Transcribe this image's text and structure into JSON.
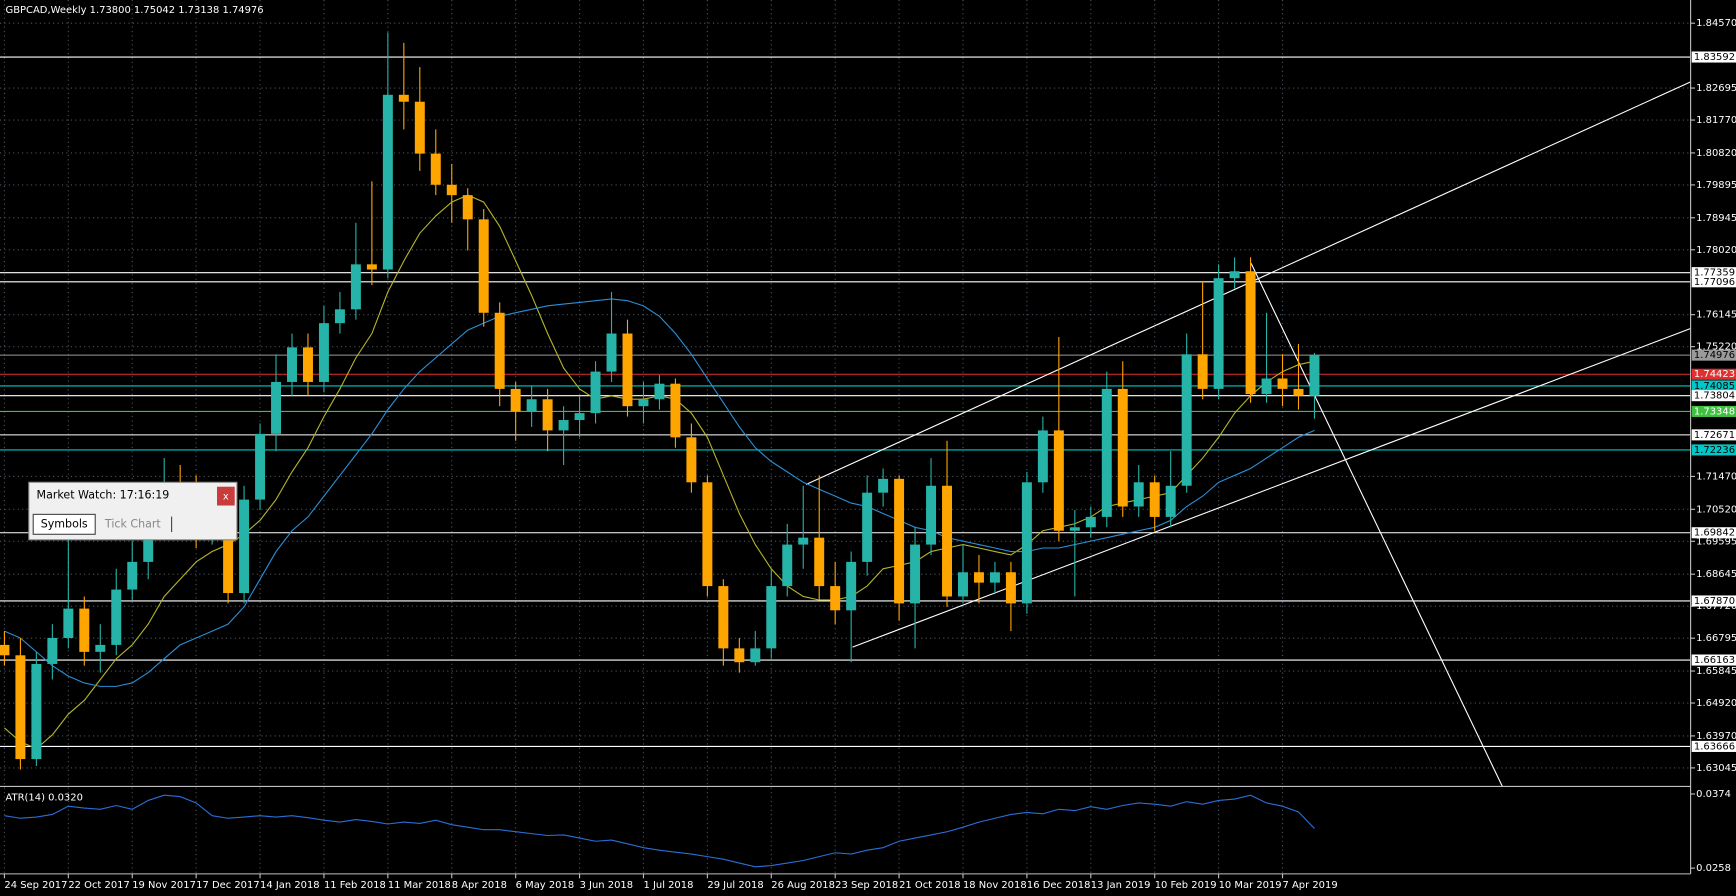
{
  "chart_data": [
    {
      "type": "candlestick",
      "title": "GBPCAD,Weekly  1.73800 1.75042 1.73138 1.74976",
      "categories": [
        "24 Sep 2017",
        null,
        null,
        null,
        "22 Oct 2017",
        null,
        null,
        null,
        "19 Nov 2017",
        null,
        null,
        null,
        "17 Dec 2017",
        null,
        null,
        null,
        "14 Jan 2018",
        null,
        null,
        null,
        "11 Feb 2018",
        null,
        null,
        null,
        "11 Mar 2018",
        null,
        null,
        null,
        "8 Apr 2018",
        null,
        null,
        null,
        "6 May 2018",
        null,
        null,
        null,
        "3 Jun 2018",
        null,
        null,
        null,
        "1 Jul 2018",
        null,
        null,
        null,
        "29 Jul 2018",
        null,
        null,
        null,
        "26 Aug 2018",
        null,
        null,
        null,
        "23 Sep 2018",
        null,
        null,
        null,
        "21 Oct 2018",
        null,
        null,
        null,
        "18 Nov 2018",
        null,
        null,
        null,
        "16 Dec 2018",
        null,
        null,
        null,
        "13 Jan 2019",
        null,
        null,
        null,
        "10 Feb 2019",
        null,
        null,
        null,
        "10 Mar 2019",
        null,
        null,
        null,
        "7 Apr 2019",
        null,
        null
      ],
      "open": [
        1.666,
        1.663,
        1.633,
        1.6605,
        1.668,
        1.6765,
        1.664,
        1.666,
        1.682,
        1.69,
        1.6995,
        1.7125,
        1.711,
        1.698,
        1.699,
        1.681,
        1.708,
        1.727,
        1.742,
        1.752,
        1.742,
        1.759,
        1.763,
        1.776,
        1.7745,
        1.825,
        1.823,
        1.808,
        1.799,
        1.796,
        1.789,
        1.762,
        1.74,
        1.7335,
        1.737,
        1.728,
        1.731,
        1.733,
        1.745,
        1.756,
        1.735,
        1.737,
        1.7415,
        1.726,
        1.713,
        1.683,
        1.665,
        1.661,
        1.665,
        1.683,
        1.695,
        1.697,
        1.683,
        1.676,
        1.69,
        1.71,
        1.714,
        1.678,
        1.695,
        1.712,
        1.68,
        1.687,
        1.684,
        1.687,
        1.678,
        1.713,
        1.728,
        1.699,
        1.7,
        1.703,
        1.74,
        1.706,
        1.713,
        1.703,
        1.712,
        1.75,
        1.74,
        1.772,
        1.774,
        1.7385,
        1.743,
        1.74,
        1.738
      ],
      "high": [
        1.67,
        1.668,
        1.664,
        1.672,
        1.699,
        1.68,
        1.672,
        1.688,
        1.696,
        1.705,
        1.72,
        1.718,
        1.715,
        1.706,
        1.703,
        1.712,
        1.73,
        1.75,
        1.756,
        1.756,
        1.764,
        1.768,
        1.788,
        1.8,
        1.843,
        1.84,
        1.833,
        1.815,
        1.805,
        1.798,
        1.792,
        1.765,
        1.742,
        1.741,
        1.74,
        1.735,
        1.738,
        1.748,
        1.768,
        1.76,
        1.742,
        1.744,
        1.743,
        1.73,
        1.715,
        1.685,
        1.668,
        1.67,
        1.688,
        1.701,
        1.712,
        1.715,
        1.69,
        1.693,
        1.715,
        1.717,
        1.715,
        1.7,
        1.72,
        1.725,
        1.695,
        1.692,
        1.69,
        1.69,
        1.716,
        1.732,
        1.755,
        1.705,
        1.706,
        1.745,
        1.748,
        1.718,
        1.715,
        1.722,
        1.756,
        1.771,
        1.776,
        1.778,
        1.778,
        1.762,
        1.75,
        1.753,
        1.75042
      ],
      "low": [
        1.66,
        1.63,
        1.631,
        1.656,
        1.665,
        1.66,
        1.658,
        1.663,
        1.679,
        1.685,
        1.697,
        1.706,
        1.694,
        1.695,
        1.678,
        1.678,
        1.705,
        1.722,
        1.738,
        1.738,
        1.739,
        1.756,
        1.76,
        1.77,
        1.772,
        1.815,
        1.803,
        1.796,
        1.788,
        1.78,
        1.758,
        1.735,
        1.725,
        1.729,
        1.722,
        1.718,
        1.726,
        1.73,
        1.742,
        1.732,
        1.73,
        1.734,
        1.723,
        1.71,
        1.68,
        1.66,
        1.658,
        1.66,
        1.662,
        1.68,
        1.688,
        1.679,
        1.672,
        1.661,
        1.686,
        1.706,
        1.673,
        1.665,
        1.692,
        1.677,
        1.678,
        1.678,
        1.681,
        1.67,
        1.675,
        1.71,
        1.696,
        1.68,
        1.697,
        1.7,
        1.703,
        1.703,
        1.699,
        1.7,
        1.71,
        1.737,
        1.737,
        1.769,
        1.736,
        1.736,
        1.735,
        1.734,
        1.73138
      ],
      "close": [
        1.663,
        1.633,
        1.6605,
        1.668,
        1.6765,
        1.664,
        1.666,
        1.682,
        1.69,
        1.6995,
        1.7125,
        1.711,
        1.698,
        1.699,
        1.681,
        1.708,
        1.727,
        1.742,
        1.752,
        1.742,
        1.759,
        1.763,
        1.776,
        1.7745,
        1.825,
        1.823,
        1.808,
        1.799,
        1.796,
        1.789,
        1.762,
        1.74,
        1.7335,
        1.737,
        1.728,
        1.731,
        1.733,
        1.745,
        1.756,
        1.735,
        1.737,
        1.7415,
        1.726,
        1.713,
        1.683,
        1.665,
        1.661,
        1.665,
        1.683,
        1.695,
        1.697,
        1.683,
        1.676,
        1.69,
        1.71,
        1.714,
        1.678,
        1.695,
        1.712,
        1.68,
        1.687,
        1.684,
        1.687,
        1.678,
        1.713,
        1.728,
        1.699,
        1.7,
        1.703,
        1.74,
        1.706,
        1.713,
        1.703,
        1.712,
        1.75,
        1.74,
        1.772,
        1.774,
        1.7385,
        1.743,
        1.74,
        1.738,
        1.74976
      ],
      "up_color": "#26b3a8",
      "down_color": "#ffa500",
      "lines": [
        {
          "color": "#b5b52a",
          "values": [
            1.642,
            1.638,
            1.636,
            1.64,
            1.646,
            1.65,
            1.656,
            1.662,
            1.666,
            1.672,
            1.68,
            1.685,
            1.69,
            1.693,
            1.695,
            1.698,
            1.702,
            1.708,
            1.716,
            1.723,
            1.732,
            1.74,
            1.749,
            1.756,
            1.768,
            1.777,
            1.785,
            1.79,
            1.794,
            1.796,
            1.794,
            1.787,
            1.777,
            1.767,
            1.756,
            1.746,
            1.74,
            1.737,
            1.738,
            1.737,
            1.737,
            1.738,
            1.737,
            1.733,
            1.726,
            1.715,
            1.704,
            1.695,
            1.688,
            1.683,
            1.68,
            1.679,
            1.679,
            1.68,
            1.683,
            1.688,
            1.689,
            1.69,
            1.693,
            1.694,
            1.695,
            1.694,
            1.693,
            1.692,
            1.695,
            1.699,
            1.7,
            1.701,
            1.703,
            1.706,
            1.707,
            1.708,
            1.709,
            1.71,
            1.715,
            1.72,
            1.726,
            1.733,
            1.738,
            1.742,
            1.745,
            1.747,
            1.748
          ]
        },
        {
          "color": "#2a8fd8",
          "values": [
            1.67,
            1.668,
            1.664,
            1.66,
            1.657,
            1.655,
            1.654,
            1.654,
            1.655,
            1.658,
            1.662,
            1.666,
            1.668,
            1.67,
            1.672,
            1.677,
            1.685,
            1.693,
            1.699,
            1.703,
            1.709,
            1.715,
            1.721,
            1.727,
            1.734,
            1.74,
            1.745,
            1.749,
            1.753,
            1.757,
            1.759,
            1.761,
            1.762,
            1.763,
            1.764,
            1.7645,
            1.765,
            1.7655,
            1.766,
            1.7655,
            1.764,
            1.761,
            1.756,
            1.75,
            1.743,
            1.736,
            1.729,
            1.723,
            1.719,
            1.716,
            1.713,
            1.711,
            1.709,
            1.707,
            1.706,
            1.704,
            1.702,
            1.7,
            1.699,
            1.697,
            1.696,
            1.695,
            1.694,
            1.693,
            1.693,
            1.694,
            1.694,
            1.695,
            1.696,
            1.697,
            1.698,
            1.699,
            1.7,
            1.702,
            1.706,
            1.709,
            1.713,
            1.715,
            1.717,
            1.72,
            1.723,
            1.726,
            1.728
          ]
        }
      ],
      "levels": [
        {
          "value": 1.83592,
          "color": "#ffffff"
        },
        {
          "value": 1.77359,
          "color": "#ffffff"
        },
        {
          "value": 1.77096,
          "color": "#ffffff"
        },
        {
          "value": 1.74976,
          "color": "#9a9a9a"
        },
        {
          "value": 1.74423,
          "color": "#e03030"
        },
        {
          "value": 1.74085,
          "color": "#00c8c8"
        },
        {
          "value": 1.73804,
          "color": "#ffffff"
        },
        {
          "value": 1.73348,
          "color": "#40c040"
        },
        {
          "value": 1.72671,
          "color": "#ffffff"
        },
        {
          "value": 1.72236,
          "color": "#00c8c8"
        },
        {
          "value": 1.69842,
          "color": "#ffffff"
        },
        {
          "value": 1.6787,
          "label": "1.67870",
          "color": "#ffffff"
        },
        {
          "value": 1.66163,
          "color": "#ffffff"
        },
        {
          "value": 1.63666,
          "color": "#ffffff"
        }
      ],
      "ylim": [
        1.6254,
        1.8524
      ],
      "yticks": [
        {
          "value": 1.8457,
          "label": "1.84570"
        },
        1.82695,
        {
          "value": 1.8177,
          "label": "1.81770"
        },
        {
          "value": 1.8082,
          "label": "1.80820"
        },
        1.79895,
        1.78945,
        {
          "value": 1.7802,
          "label": "1.78020"
        },
        1.76145,
        {
          "value": 1.7522,
          "label": "1.75220"
        },
        {
          "value": 1.7147,
          "label": "1.71470"
        },
        {
          "value": 1.7052,
          "label": "1.70520"
        },
        1.69595,
        1.68645,
        {
          "value": 1.6772,
          "label": "1.67720"
        },
        1.66795,
        1.65845,
        {
          "value": 1.6492,
          "label": "1.64920"
        },
        {
          "value": 1.6397,
          "label": "1.63970"
        },
        1.63045
      ],
      "grid": true
    },
    {
      "type": "line",
      "title": "ATR(14) 0.0320",
      "color": "#2a6fd8",
      "values": [
        0.034,
        0.0336,
        0.0338,
        0.0342,
        0.0355,
        0.0352,
        0.035,
        0.0356,
        0.035,
        0.0364,
        0.0372,
        0.037,
        0.036,
        0.034,
        0.0336,
        0.0338,
        0.034,
        0.0338,
        0.034,
        0.0337,
        0.0333,
        0.033,
        0.0334,
        0.0331,
        0.0327,
        0.033,
        0.0328,
        0.0333,
        0.0326,
        0.0322,
        0.0318,
        0.0318,
        0.0315,
        0.0312,
        0.0309,
        0.031,
        0.0305,
        0.03,
        0.0302,
        0.0296,
        0.029,
        0.0286,
        0.0283,
        0.028,
        0.0276,
        0.0272,
        0.0266,
        0.026,
        0.0262,
        0.0266,
        0.027,
        0.0276,
        0.0282,
        0.028,
        0.0286,
        0.029,
        0.03,
        0.0305,
        0.031,
        0.0315,
        0.0322,
        0.033,
        0.0336,
        0.0342,
        0.0345,
        0.0343,
        0.035,
        0.0348,
        0.0354,
        0.035,
        0.0356,
        0.036,
        0.0358,
        0.0355,
        0.0362,
        0.0358,
        0.0364,
        0.0366,
        0.0372,
        0.036,
        0.0355,
        0.0346,
        0.032
      ],
      "ylim": [
        0.0249,
        0.0384
      ],
      "yticks": [
        0.0374,
        0.0258
      ]
    }
  ],
  "market_watch": {
    "title": "Market Watch: 17:16:19",
    "close": "x",
    "tabs": [
      "Symbols",
      "Tick Chart"
    ]
  }
}
